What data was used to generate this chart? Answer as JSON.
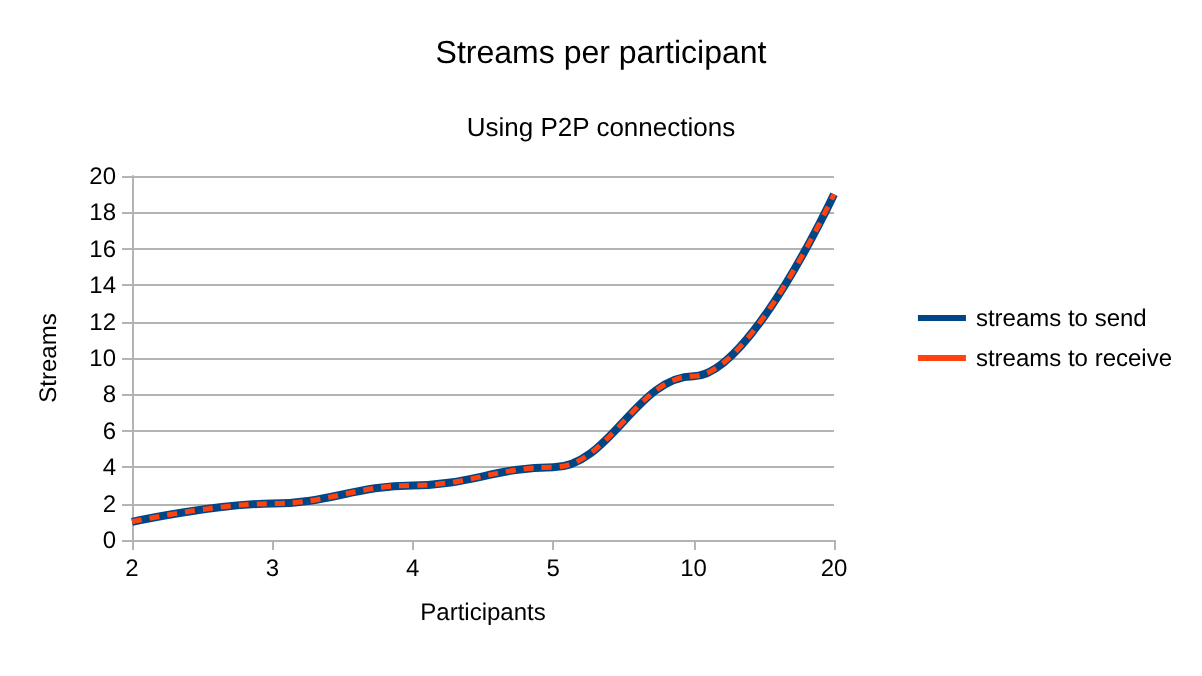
{
  "chart_data": {
    "type": "line",
    "title": "Streams per participant",
    "subtitle": "Using P2P connections",
    "xlabel": "Participants",
    "ylabel": "Streams",
    "categories": [
      "2",
      "3",
      "4",
      "5",
      "10",
      "20"
    ],
    "series": [
      {
        "name": "streams to send",
        "color": "#004586",
        "values": [
          1,
          2,
          3,
          4,
          9,
          19
        ],
        "line_style": "solid"
      },
      {
        "name": "streams to receive",
        "color": "#ff420e",
        "values": [
          1,
          2,
          3,
          4,
          9,
          19
        ],
        "line_style": "dashed"
      }
    ],
    "ylim": [
      0,
      20
    ],
    "yticks": [
      0,
      2,
      4,
      6,
      8,
      10,
      12,
      14,
      16,
      18,
      20
    ],
    "grid": "y",
    "legend": "right",
    "marker": "none"
  }
}
